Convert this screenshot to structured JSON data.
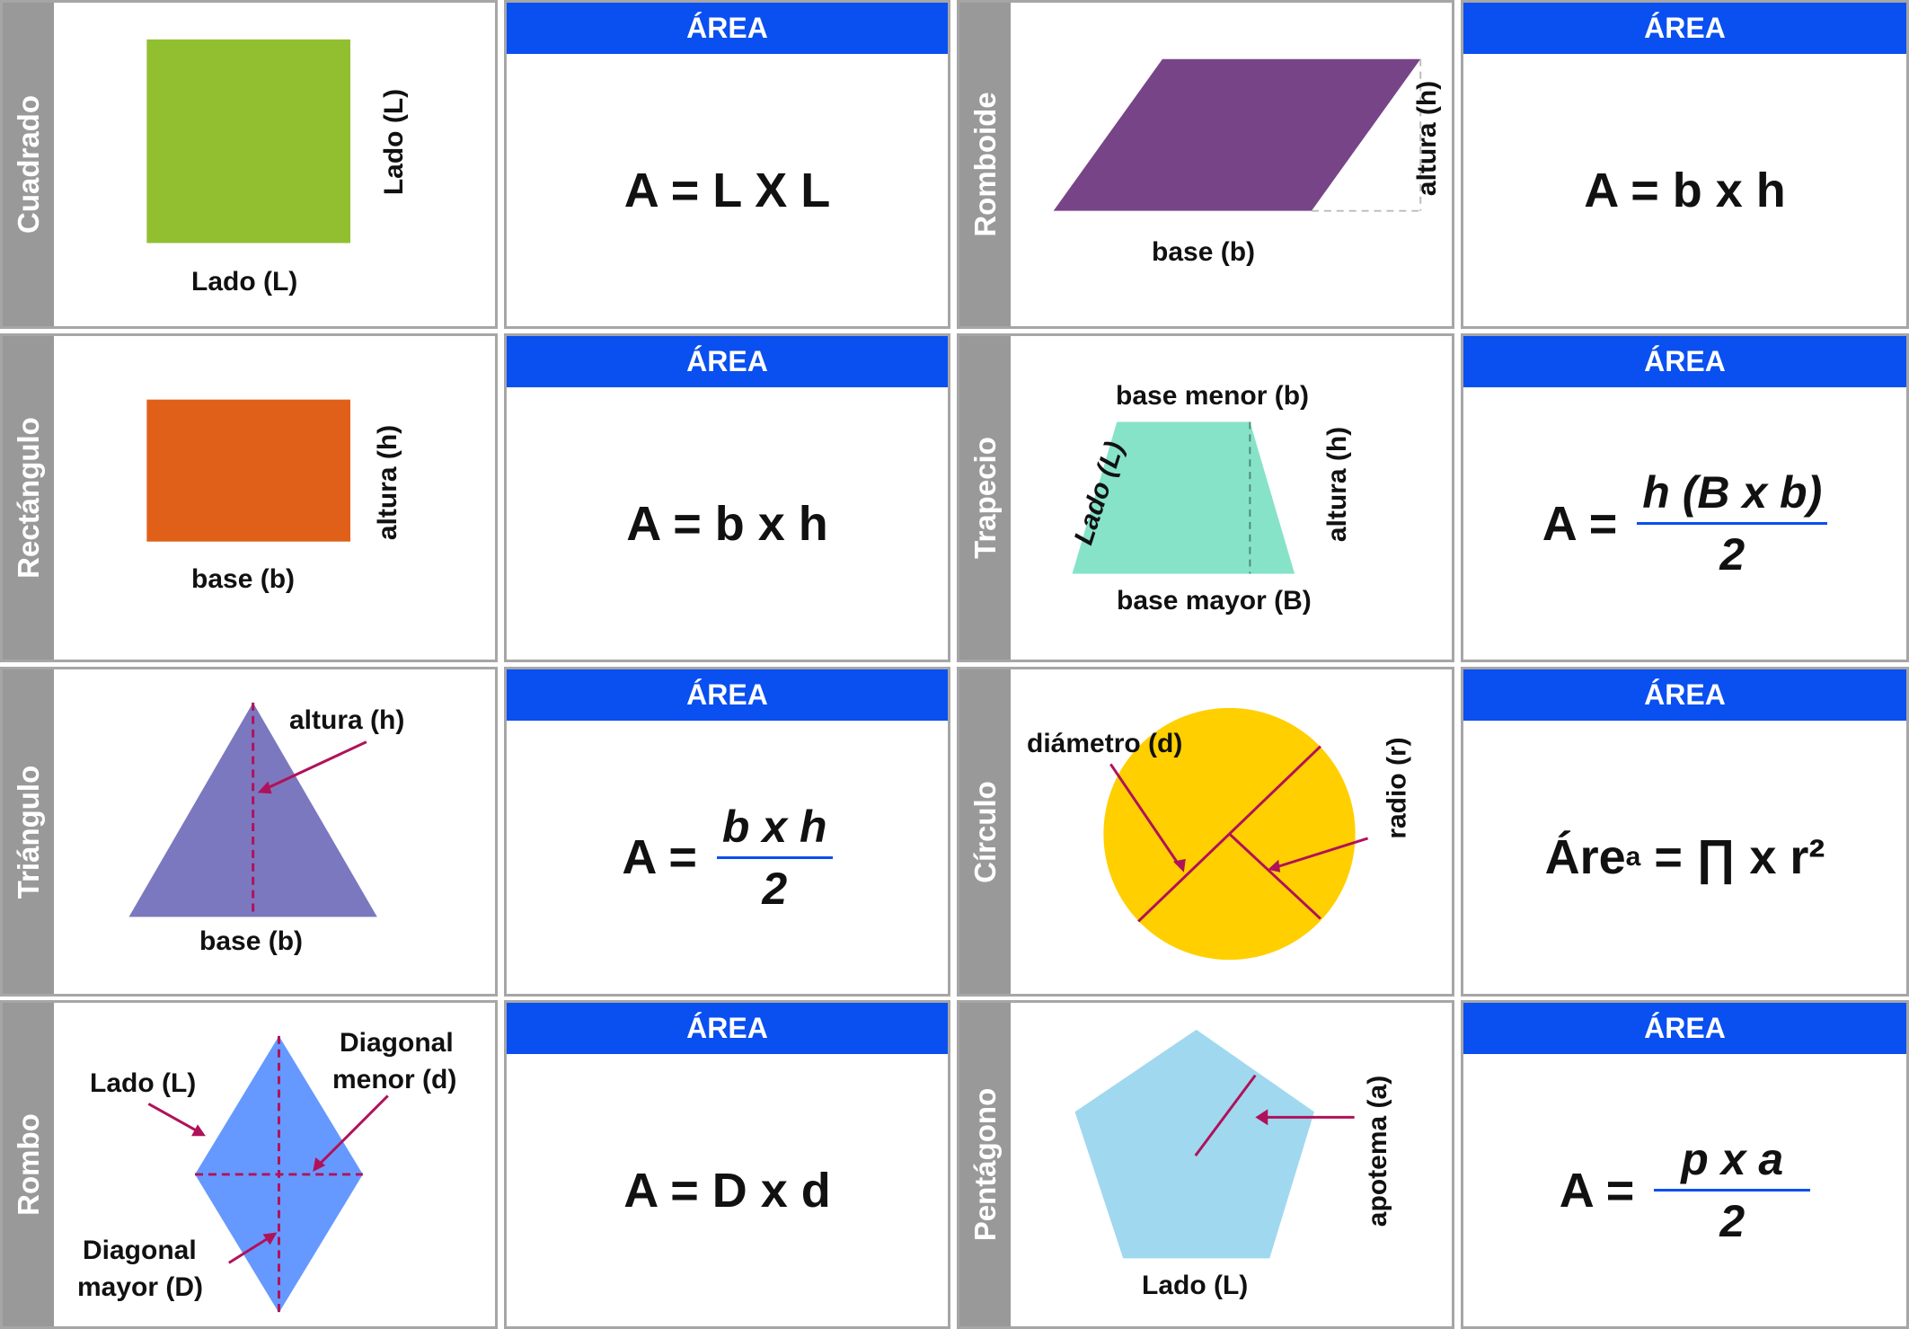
{
  "area_header": "ÁREA",
  "colors": {
    "header_blue": "#0a4ff0",
    "side_gray": "#999999",
    "arrow": "#b0125a",
    "square": "#92bf30",
    "rectangle": "#e0601a",
    "rhomboid": "#784488",
    "trapezoid": "#86e3c8",
    "triangle": "#7b78c0",
    "circle": "#ffcf00",
    "rhombus": "#6699ff",
    "pentagon": "#a0d8f0"
  },
  "shapes": [
    {
      "name": "Cuadrado",
      "labels": {
        "side_bottom": "Lado (L)",
        "side_right": "Lado (L)"
      },
      "formula": "A = L X L"
    },
    {
      "name": "Romboide",
      "labels": {
        "base": "base (b)",
        "height": "altura (h)"
      },
      "formula": "A = b x h"
    },
    {
      "name": "Rectángulo",
      "labels": {
        "base": "base (b)",
        "height": "altura (h)"
      },
      "formula": "A = b x h"
    },
    {
      "name": "Trapecio",
      "labels": {
        "top": "base menor (b)",
        "bottom": "base mayor (B)",
        "side": "Lado (L)",
        "height": "altura (h)"
      },
      "formula_lhs": "A =",
      "formula_num": "h (B x b)",
      "formula_den": "2"
    },
    {
      "name": "Triángulo",
      "labels": {
        "height": "altura (h)",
        "base": "base (b)"
      },
      "formula_lhs": "A =",
      "formula_num": "b x h",
      "formula_den": "2"
    },
    {
      "name": "Círculo",
      "labels": {
        "diameter": "diámetro (d)",
        "radius": "radio (r)"
      },
      "formula_main": "Áre",
      "formula_sup": "a",
      "formula_rest": " = ∏ x r²"
    },
    {
      "name": "Rombo",
      "labels": {
        "side": "Lado (L)",
        "minor_1": "Diagonal",
        "minor_2": "menor (d)",
        "major_1": "Diagonal",
        "major_2": "mayor (D)"
      },
      "formula": "A = D x d"
    },
    {
      "name": "Pentágono",
      "labels": {
        "apothem": "apotema (a)",
        "side": "Lado (L)"
      },
      "formula_lhs": "A =",
      "formula_num": "p x a",
      "formula_den": "2"
    }
  ]
}
